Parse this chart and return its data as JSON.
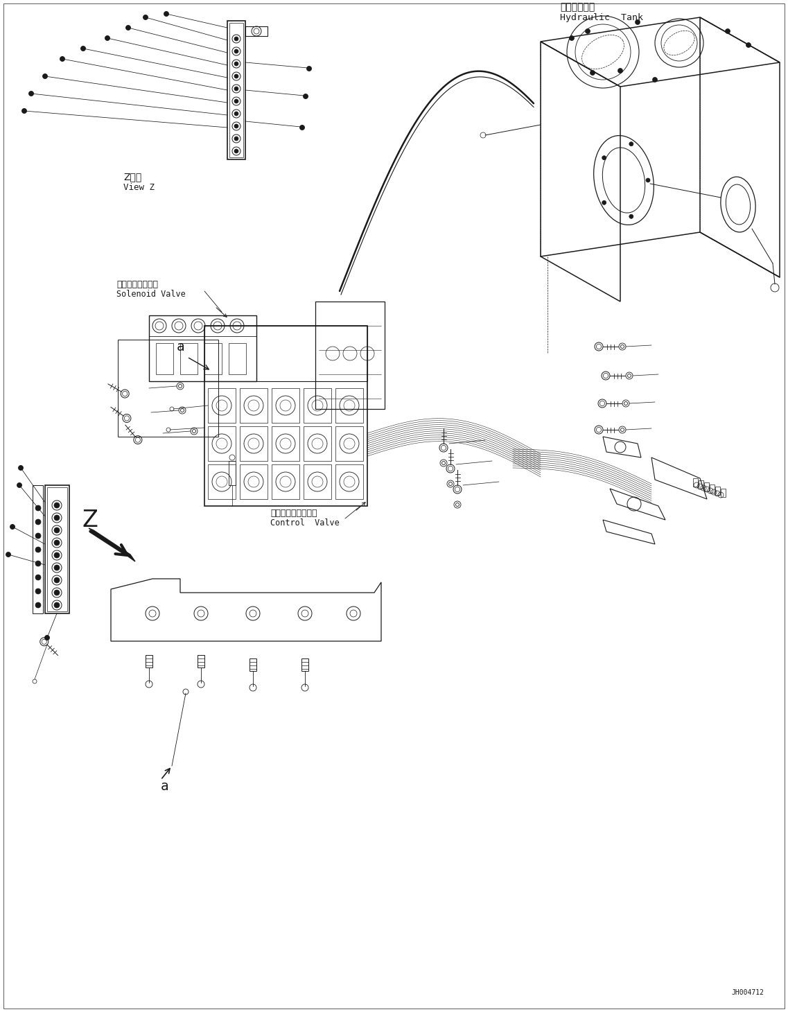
{
  "background_color": "#ffffff",
  "line_color": "#1a1a1a",
  "text_color": "#1a1a1a",
  "fig_width": 11.37,
  "fig_height": 14.6,
  "labels": {
    "hydraulic_tank_jp": "作動油タンク",
    "hydraulic_tank_en": "Hydraulic  Tank",
    "solenoid_valve_jp": "ソレノイドバルブ",
    "solenoid_valve_en": "Solenoid Valve",
    "control_valve_jp": "コントロールバルブ",
    "control_valve_en": "Control  Valve",
    "view_z_jp": "Z　視",
    "view_z_en": "View Z",
    "label_a1": "a",
    "label_a2": "a",
    "label_z": "Z",
    "part_number": "JH004712"
  }
}
